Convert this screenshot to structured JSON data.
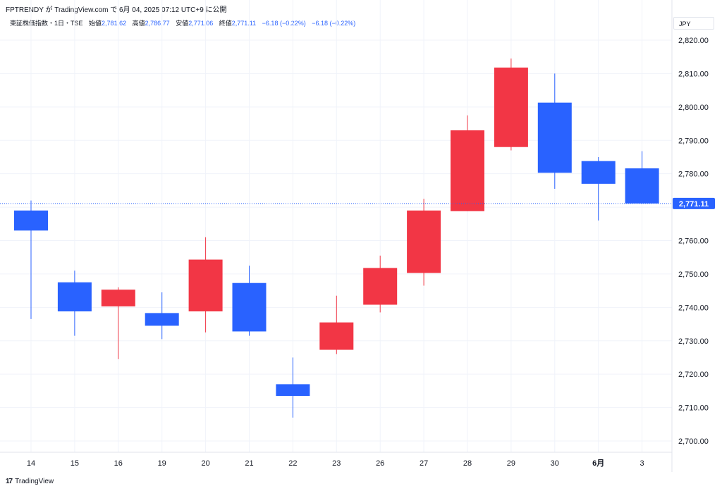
{
  "header": {
    "published": "FPTRENDY が TradingView.com で 6月 04, 2025 07:12 UTC+9 に公開"
  },
  "legend": {
    "symbol": "東証株価指数・1日・TSE",
    "open_label": "始値",
    "open_value": "2,781.62",
    "high_label": "高値",
    "high_value": "2,786.77",
    "low_label": "安値",
    "low_value": "2,771.06",
    "close_label": "終値",
    "close_value": "2,771.11",
    "change": "−6.18 (−0.22%)",
    "change2": "−6.18 (−0.22%)"
  },
  "currency": "JPY",
  "last_price_label": "2,771.11",
  "brand": {
    "logo": "17",
    "name": "TradingView"
  },
  "colors": {
    "up": "#f23645",
    "down": "#2962ff",
    "grid": "#f0f3fa",
    "price_line": "#2962ff"
  },
  "chart_data": {
    "type": "candlestick",
    "categories": [
      "14",
      "15",
      "16",
      "19",
      "20",
      "21",
      "22",
      "23",
      "26",
      "27",
      "28",
      "29",
      "30",
      "6月",
      "3"
    ],
    "bold_categories": [
      "6月"
    ],
    "ohlc": [
      {
        "o": 2769.0,
        "h": 2772.0,
        "l": 2736.5,
        "c": 2763.0
      },
      {
        "o": 2747.5,
        "h": 2751.0,
        "l": 2731.5,
        "c": 2738.8
      },
      {
        "o": 2740.3,
        "h": 2746.0,
        "l": 2724.5,
        "c": 2745.3
      },
      {
        "o": 2738.3,
        "h": 2744.5,
        "l": 2730.5,
        "c": 2734.5
      },
      {
        "o": 2738.8,
        "h": 2761.0,
        "l": 2732.5,
        "c": 2754.3
      },
      {
        "o": 2747.3,
        "h": 2752.5,
        "l": 2731.5,
        "c": 2732.8
      },
      {
        "o": 2717.0,
        "h": 2725.0,
        "l": 2707.0,
        "c": 2713.5
      },
      {
        "o": 2727.3,
        "h": 2743.5,
        "l": 2726.0,
        "c": 2735.5
      },
      {
        "o": 2740.8,
        "h": 2755.5,
        "l": 2738.5,
        "c": 2751.8
      },
      {
        "o": 2750.3,
        "h": 2772.5,
        "l": 2746.5,
        "c": 2769.0
      },
      {
        "o": 2768.8,
        "h": 2797.5,
        "l": 2768.8,
        "c": 2793.0
      },
      {
        "o": 2788.0,
        "h": 2814.5,
        "l": 2787.0,
        "c": 2811.8
      },
      {
        "o": 2801.3,
        "h": 2810.0,
        "l": 2775.5,
        "c": 2780.3
      },
      {
        "o": 2783.8,
        "h": 2785.0,
        "l": 2766.0,
        "c": 2777.0
      },
      {
        "o": 2781.62,
        "h": 2786.77,
        "l": 2771.06,
        "c": 2771.11
      }
    ],
    "yticks": [
      "2,820.00",
      "2,810.00",
      "2,800.00",
      "2,790.00",
      "2,780.00",
      "2,760.00",
      "2,750.00",
      "2,740.00",
      "2,730.00",
      "2,720.00",
      "2,710.00",
      "2,700.00"
    ],
    "ytick_values": [
      2820,
      2810,
      2800,
      2790,
      2780,
      2760,
      2750,
      2740,
      2730,
      2720,
      2710,
      2700
    ],
    "last_price": 2771.11,
    "grid": true
  }
}
